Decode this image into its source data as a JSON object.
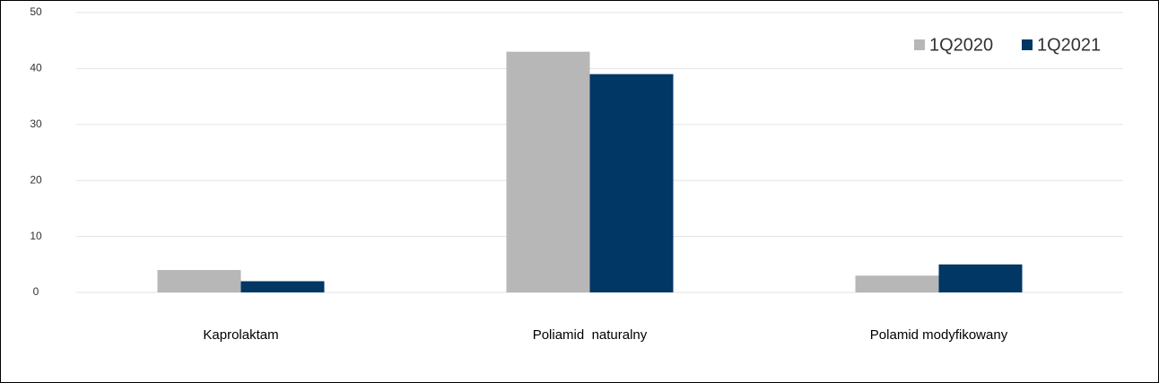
{
  "chart_data": {
    "type": "bar",
    "categories": [
      "Kaprolaktam",
      "Poliamid  naturalny",
      "Polamid modyfikowany"
    ],
    "series": [
      {
        "name": "1Q2020",
        "color": "#b7b7b7",
        "values": [
          4,
          43,
          3
        ]
      },
      {
        "name": "1Q2021",
        "color": "#003764",
        "values": [
          2,
          39,
          5
        ]
      }
    ],
    "ylim": [
      0,
      50
    ],
    "yticks": [
      0,
      10,
      20,
      30,
      40,
      50
    ],
    "grid": true,
    "legend": "top-right"
  }
}
